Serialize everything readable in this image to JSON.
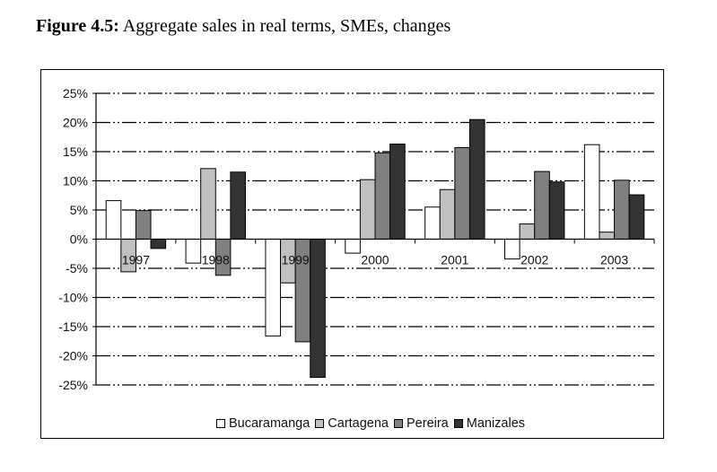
{
  "title": {
    "label": "Figure 4.5:",
    "text": "Aggregate sales in real terms, SMEs, changes"
  },
  "chart_data": {
    "type": "bar",
    "title": "Figure 4.5: Aggregate sales in real terms, SMEs, changes",
    "xlabel": "",
    "ylabel": "",
    "categories": [
      "1997",
      "1998",
      "1999",
      "2000",
      "2001",
      "2002",
      "2003"
    ],
    "series": [
      {
        "name": "Bucaramanga",
        "color": "#ffffff",
        "values": [
          6.6,
          -4.1,
          -16.6,
          -2.4,
          5.5,
          -3.4,
          16.2
        ]
      },
      {
        "name": "Cartagena",
        "color": "#c0c0c0",
        "values": [
          -5.6,
          12.1,
          -7.5,
          10.2,
          8.5,
          2.6,
          1.2
        ]
      },
      {
        "name": "Pereira",
        "color": "#808080",
        "values": [
          4.9,
          -6.2,
          -17.6,
          14.8,
          15.7,
          11.6,
          10.1
        ]
      },
      {
        "name": "Manizales",
        "color": "#333333",
        "values": [
          -1.6,
          11.5,
          -23.7,
          16.3,
          20.5,
          9.8,
          7.6
        ]
      }
    ],
    "ylim": [
      -25,
      25
    ],
    "yticks": [
      25,
      20,
      15,
      10,
      5,
      0,
      -5,
      -10,
      -15,
      -20,
      -25
    ],
    "ytick_labels": [
      "25%",
      "20%",
      "15%",
      "10%",
      "5%",
      "0%",
      "-5%",
      "-10%",
      "-15%",
      "-20%",
      "-25%"
    ],
    "grid": true,
    "legend_position": "bottom"
  }
}
